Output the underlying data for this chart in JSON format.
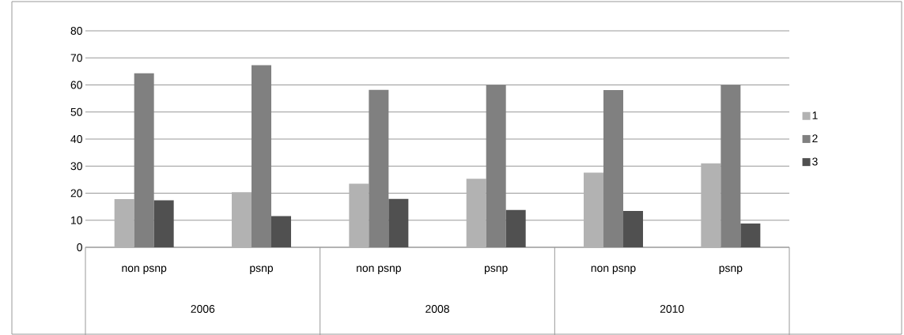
{
  "chart_data": {
    "type": "bar",
    "categories": [
      "non psnp",
      "psnp",
      "non psnp",
      "psnp",
      "non psnp",
      "psnp"
    ],
    "annotations": [
      "2006",
      "2008",
      "2010"
    ],
    "series": [
      {
        "name": "1",
        "color": "#b2b2b2",
        "values": [
          17.8,
          20.4,
          23.5,
          25.3,
          27.6,
          31
        ]
      },
      {
        "name": "2",
        "color": "#808080",
        "values": [
          64.3,
          67.3,
          58.2,
          60,
          58.1,
          60
        ]
      },
      {
        "name": "3",
        "color": "#505050",
        "values": [
          17.4,
          11.5,
          17.9,
          13.8,
          13.4,
          8.8
        ]
      }
    ],
    "ylim": [
      0,
      80
    ],
    "yticks": [
      0,
      10,
      20,
      30,
      40,
      50,
      60,
      70,
      80
    ],
    "grid": "y",
    "legend": "right"
  }
}
